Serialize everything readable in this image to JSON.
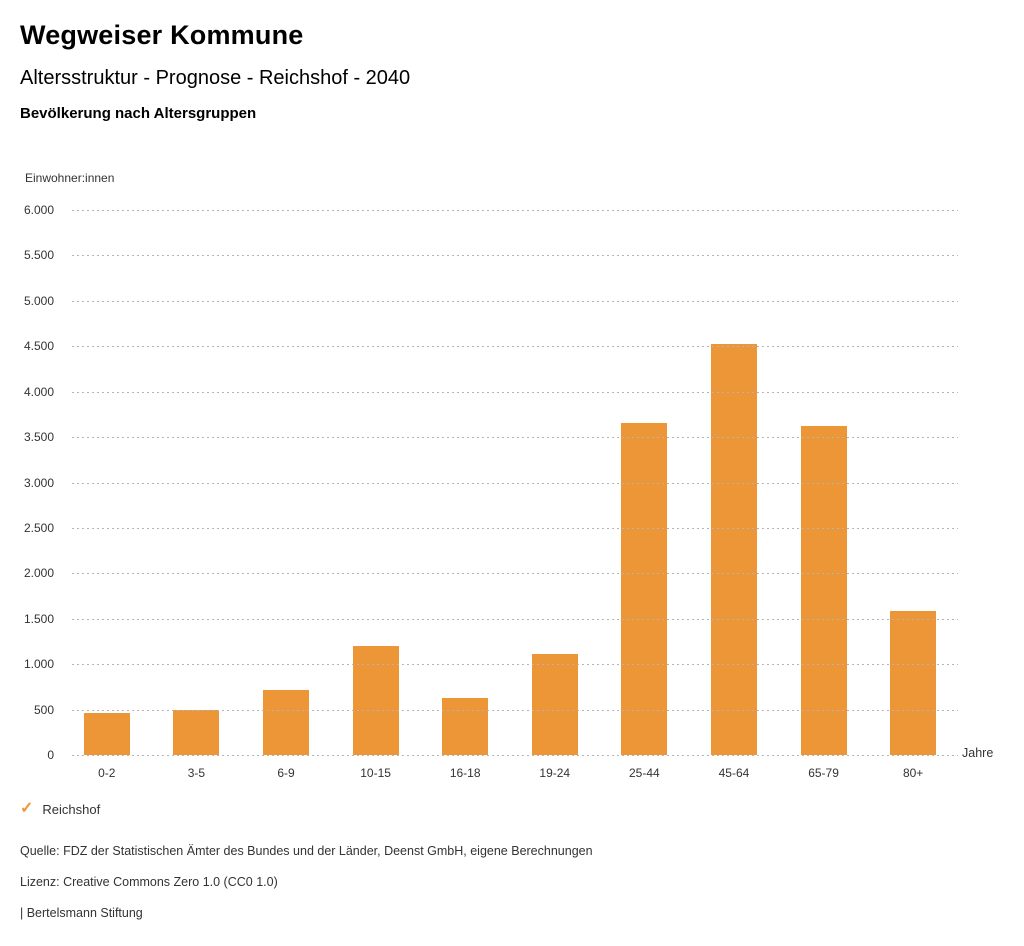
{
  "header": {
    "title": "Wegweiser Kommune",
    "subtitle": "Altersstruktur - Prognose - Reichshof - 2040",
    "chart_heading": "Bevölkerung nach Altersgruppen"
  },
  "chart_data": {
    "type": "bar",
    "title": "Bevölkerung nach Altersgruppen",
    "categories": [
      "0-2",
      "3-5",
      "6-9",
      "10-15",
      "16-18",
      "19-24",
      "25-44",
      "45-64",
      "65-79",
      "80+"
    ],
    "series": [
      {
        "name": "Reichshof",
        "values": [
          465,
          495,
          715,
          1195,
          625,
          1115,
          3655,
          4530,
          3625,
          1590
        ]
      }
    ],
    "xlabel": "Jahre",
    "ylabel": "Einwohner:innen",
    "ylim": [
      0,
      6000
    ],
    "ytick_step": 500,
    "ytick_labels": [
      "0",
      "500",
      "1.000",
      "1.500",
      "2.000",
      "2.500",
      "3.000",
      "3.500",
      "4.000",
      "4.500",
      "5.000",
      "5.500",
      "6.000"
    ],
    "grid": "horizontal-dotted",
    "legend_position": "bottom-left",
    "bar_color": "#ED9637"
  },
  "legend": {
    "marker": "check-icon",
    "label": "Reichshof",
    "color": "#ED9637"
  },
  "footer": {
    "source": "Quelle: FDZ der Statistischen Ämter des Bundes und der Länder, Deenst GmbH, eigene Berechnungen",
    "license": "Lizenz: Creative Commons Zero 1.0 (CC0 1.0)",
    "attribution": "| Bertelsmann Stiftung"
  },
  "colors": {
    "bar": "#ED9637",
    "grid": "#B4B4B4",
    "text": "#333333"
  }
}
